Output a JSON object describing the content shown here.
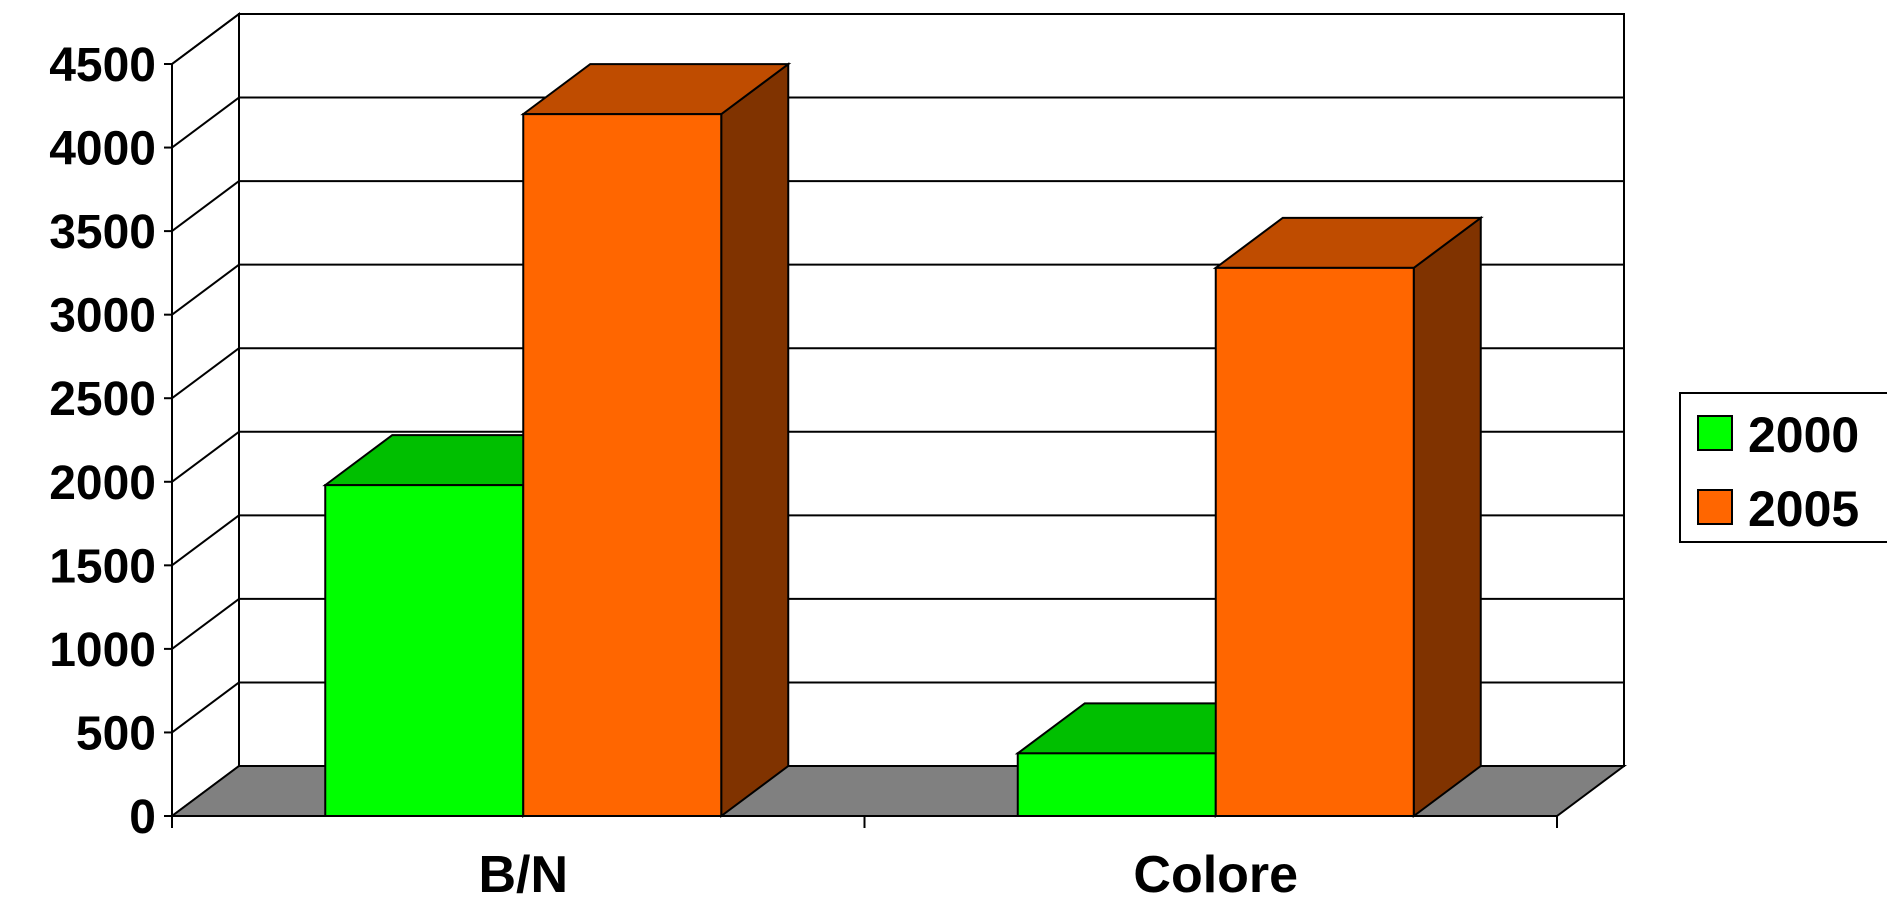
{
  "chart_data": {
    "type": "bar",
    "categories": [
      "B/N",
      "Colore"
    ],
    "series": [
      {
        "name": "2000",
        "values": [
          1980,
          375
        ]
      },
      {
        "name": "2005",
        "values": [
          4200,
          3280
        ]
      }
    ],
    "ylim": [
      0,
      4500
    ],
    "yticks": [
      "0",
      "500",
      "1000",
      "1500",
      "2000",
      "2500",
      "3000",
      "3500",
      "4000",
      "4500"
    ],
    "grid": true,
    "legend": "right",
    "three_d": true,
    "colors": {
      "2000": {
        "front": "#00ff00",
        "top": "#00bf00",
        "side": "#008000"
      },
      "2005": {
        "front": "#ff6600",
        "top": "#bf4c00",
        "side": "#803300"
      },
      "floor": "#808080",
      "grid": "#000000"
    }
  }
}
